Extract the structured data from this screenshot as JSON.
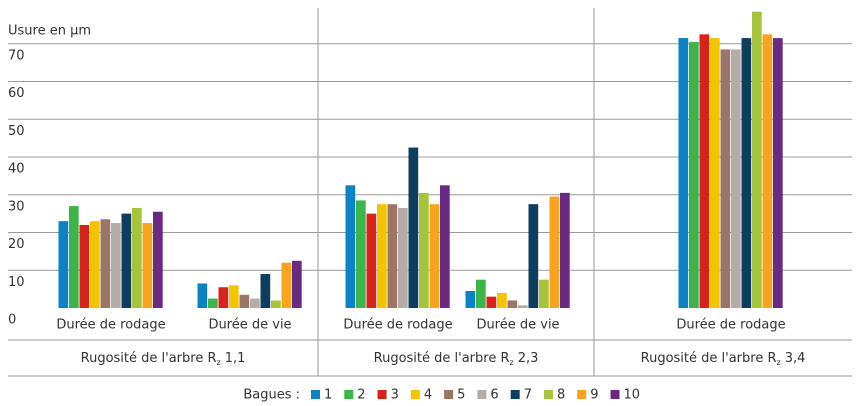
{
  "chart_data": {
    "type": "bar",
    "y_label": "Usure en µm",
    "groups": [
      {
        "prefix": "Rugosité de l'arbre R",
        "sub": "z",
        "suffix": "1,1",
        "categories": [
          "Durée de rodage",
          "Durée de vie"
        ]
      },
      {
        "prefix": "Rugosité de l'arbre R",
        "sub": "z",
        "suffix": "2,3",
        "categories": [
          "Durée de rodage",
          "Durée de vie"
        ]
      },
      {
        "prefix": "Rugosité de l'arbre R",
        "sub": "z",
        "suffix": "3,4",
        "categories": [
          "Durée de rodage"
        ]
      }
    ],
    "legend_title": "Bagues :",
    "series": [
      {
        "name": "1",
        "color": "#0a82c4",
        "values": [
          23,
          6.5,
          32.5,
          4.5,
          71.5
        ]
      },
      {
        "name": "2",
        "color": "#3db449",
        "values": [
          27,
          2.5,
          28.5,
          7.5,
          70.5
        ]
      },
      {
        "name": "3",
        "color": "#d9221c",
        "values": [
          22,
          5.5,
          25,
          3,
          72.5
        ]
      },
      {
        "name": "4",
        "color": "#f5c400",
        "values": [
          23,
          6,
          27.5,
          4,
          71.5
        ]
      },
      {
        "name": "5",
        "color": "#9b7566",
        "values": [
          23.5,
          3.5,
          27.5,
          2,
          68.5
        ]
      },
      {
        "name": "6",
        "color": "#b5aba7",
        "values": [
          22.5,
          2.5,
          26.5,
          0.7,
          68.5
        ]
      },
      {
        "name": "7",
        "color": "#0e3d5e",
        "values": [
          25,
          9,
          42.5,
          27.5,
          71.5
        ]
      },
      {
        "name": "8",
        "color": "#a6c43a",
        "values": [
          26.5,
          2,
          30.5,
          7.5,
          78.5
        ]
      },
      {
        "name": "9",
        "color": "#f7a41c",
        "values": [
          22.5,
          12,
          27.5,
          29.5,
          72.5
        ]
      },
      {
        "name": "10",
        "color": "#6b2a82",
        "values": [
          25.5,
          12.5,
          32.5,
          30.5,
          71.5
        ]
      }
    ],
    "ylim": [
      0,
      80
    ],
    "yticks": [
      0,
      10,
      20,
      30,
      40,
      50,
      60,
      70
    ],
    "grid": true
  }
}
